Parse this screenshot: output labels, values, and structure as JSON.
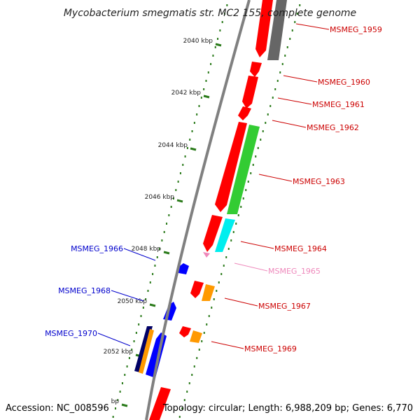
{
  "title": "Mycobacterium smegmatis str. MC2 155, complete genome",
  "accession": "Accession: NC_008596",
  "summary": "Topology: circular; Length: 6,988,209 bp; Genes: 6,770",
  "colors": {
    "backbone": "#808080",
    "forward_gene": "#ff0000",
    "reverse_gene": "#0000ff",
    "forward_label": "#cc0000",
    "reverse_label": "#0000cc",
    "pseudo_label": "#ee88bb",
    "tick": "#2a7a1a",
    "green_feature": "#33cc33",
    "cyan_feature": "#00eeee",
    "orange_feature": "#ff9900",
    "gray_feature": "#666666",
    "navy_feature": "#000066"
  },
  "ticks": [
    {
      "kbp": "2040 kbp"
    },
    {
      "kbp": "2042 kbp"
    },
    {
      "kbp": "2044 kbp"
    },
    {
      "kbp": "2046 kbp"
    },
    {
      "kbp": "2048 kbp"
    },
    {
      "kbp": "2050 kbp"
    },
    {
      "kbp": "2052 kbp"
    },
    {
      "kbp": "bp"
    }
  ],
  "genes": [
    {
      "label": "MSMEG_1959",
      "strand": "forward"
    },
    {
      "label": "MSMEG_1960",
      "strand": "forward"
    },
    {
      "label": "MSMEG_1961",
      "strand": "forward"
    },
    {
      "label": "MSMEG_1962",
      "strand": "forward"
    },
    {
      "label": "MSMEG_1963",
      "strand": "forward"
    },
    {
      "label": "MSMEG_1964",
      "strand": "forward"
    },
    {
      "label": "MSMEG_1965",
      "strand": "forward-pseudo"
    },
    {
      "label": "MSMEG_1966",
      "strand": "reverse"
    },
    {
      "label": "MSMEG_1967",
      "strand": "forward"
    },
    {
      "label": "MSMEG_1968",
      "strand": "reverse"
    },
    {
      "label": "MSMEG_1969",
      "strand": "forward"
    },
    {
      "label": "MSMEG_1970",
      "strand": "reverse"
    }
  ]
}
